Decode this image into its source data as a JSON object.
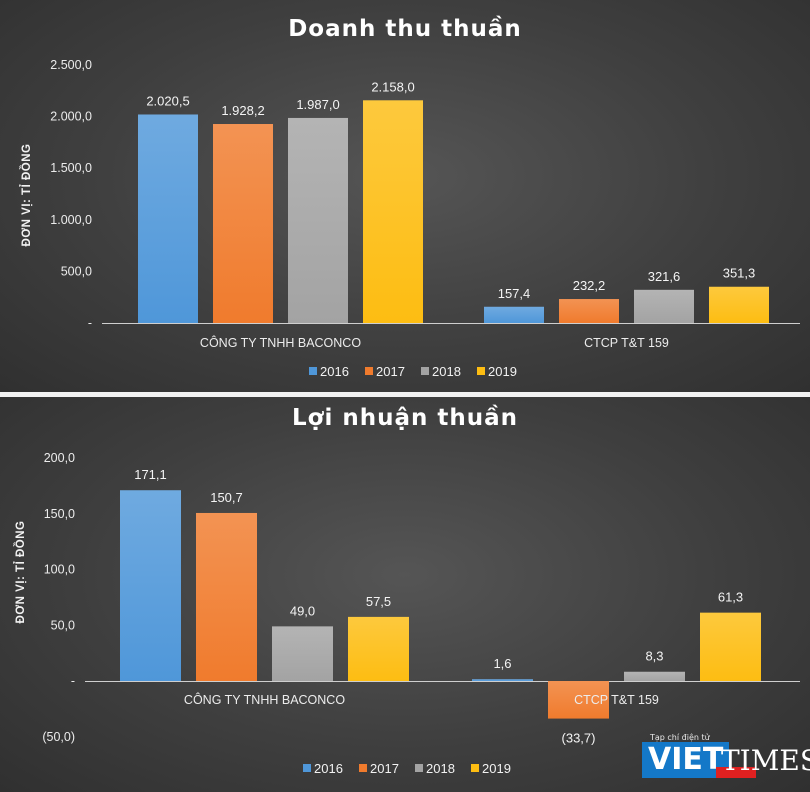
{
  "chart_data": [
    {
      "type": "bar",
      "title": "Doanh thu thuần",
      "ylabel": "ĐƠN VỊ: TỈ ĐỒNG",
      "xlabel": "",
      "categories": [
        "CÔNG TY TNHH BACONCO",
        "CTCP T&T 159"
      ],
      "series": [
        {
          "name": "2016",
          "values": [
            2020.5,
            157.4
          ],
          "labels": [
            "2.020,5",
            "157,4"
          ]
        },
        {
          "name": "2017",
          "values": [
            1928.2,
            232.2
          ],
          "labels": [
            "1.928,2",
            "232,2"
          ]
        },
        {
          "name": "2018",
          "values": [
            1987.0,
            321.6
          ],
          "labels": [
            "1.987,0",
            "321,6"
          ]
        },
        {
          "name": "2019",
          "values": [
            2158.0,
            351.3
          ],
          "labels": [
            "2.158,0",
            "351,3"
          ]
        }
      ],
      "ylim": [
        0,
        2500
      ],
      "yticks": [
        0,
        500,
        1000,
        1500,
        2000,
        2500
      ],
      "ytick_labels": [
        "-",
        "500,0",
        "1.000,0",
        "1.500,0",
        "2.000,0",
        "2.500,0"
      ],
      "grid": false,
      "legend_position": "bottom"
    },
    {
      "type": "bar",
      "title": "Lợi nhuận thuần",
      "ylabel": "ĐƠN VỊ: TỈ ĐỒNG",
      "xlabel": "",
      "categories": [
        "CÔNG TY TNHH BACONCO",
        "CTCP T&T 159"
      ],
      "series": [
        {
          "name": "2016",
          "values": [
            171.1,
            1.6
          ],
          "labels": [
            "171,1",
            "1,6"
          ]
        },
        {
          "name": "2017",
          "values": [
            150.7,
            -33.7
          ],
          "labels": [
            "150,7",
            "(33,7)"
          ]
        },
        {
          "name": "2018",
          "values": [
            49.0,
            8.3
          ],
          "labels": [
            "49,0",
            "8,3"
          ]
        },
        {
          "name": "2019",
          "values": [
            57.5,
            61.3
          ],
          "labels": [
            "57,5",
            "61,3"
          ]
        }
      ],
      "ylim": [
        -50,
        200
      ],
      "yticks": [
        -50,
        0,
        50,
        100,
        150,
        200
      ],
      "ytick_labels": [
        "(50,0)",
        "-",
        "50,0",
        "100,0",
        "150,0",
        "200,0"
      ],
      "grid": false,
      "legend_position": "bottom"
    }
  ],
  "colors": {
    "2016": "#4f97d9",
    "2017": "#f07b2d",
    "2018": "#a3a3a3",
    "2019": "#fdbd12"
  },
  "watermark": {
    "small_text": "Tạp chí điện tử",
    "brand_viet": "VIET",
    "brand_times": "TIMES"
  }
}
